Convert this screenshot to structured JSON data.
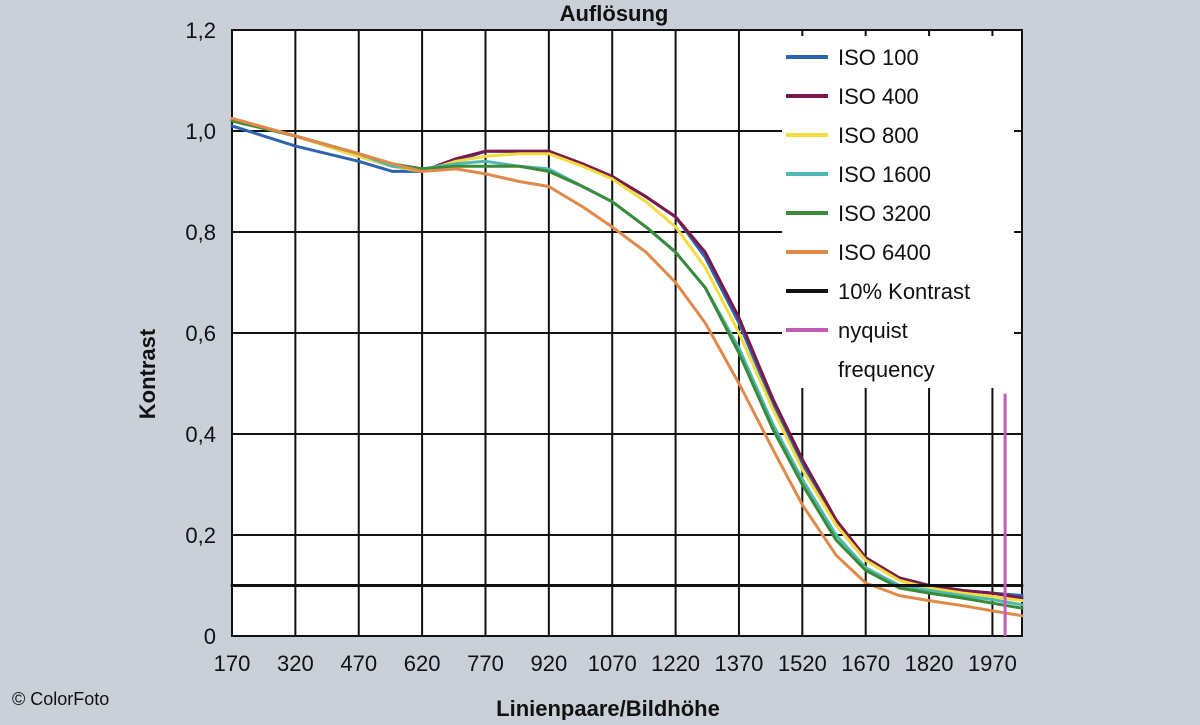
{
  "copyright": "© ColorFoto",
  "chart_data": {
    "type": "line",
    "title": "Auflösung",
    "xlabel": "Linienpaare/Bildhöhe",
    "ylabel": "Kontrast",
    "xlim": [
      170,
      2040
    ],
    "ylim": [
      0,
      1.2
    ],
    "xticks": [
      170,
      320,
      470,
      620,
      770,
      920,
      1070,
      1220,
      1370,
      1520,
      1670,
      1820,
      1970
    ],
    "yticks": [
      0,
      0.2,
      0.4,
      0.6,
      0.8,
      1.0,
      1.2
    ],
    "ytick_labels": [
      "0",
      "0,2",
      "0,4",
      "0,6",
      "0,8",
      "1,0",
      "1,2"
    ],
    "grid": true,
    "legend_position": "top-right",
    "series": [
      {
        "name": "ISO 100",
        "color": "#2e63b0",
        "x": [
          170,
          320,
          470,
          550,
          620,
          700,
          770,
          850,
          920,
          1000,
          1070,
          1150,
          1220,
          1290,
          1370,
          1450,
          1520,
          1600,
          1670,
          1750,
          1820,
          1900,
          1970,
          2040
        ],
        "y": [
          1.01,
          0.97,
          0.94,
          0.92,
          0.92,
          0.94,
          0.96,
          0.96,
          0.96,
          0.93,
          0.91,
          0.87,
          0.83,
          0.75,
          0.62,
          0.46,
          0.34,
          0.22,
          0.15,
          0.115,
          0.1,
          0.09,
          0.085,
          0.08
        ]
      },
      {
        "name": "ISO 400",
        "color": "#7a1a4a",
        "x": [
          170,
          320,
          470,
          550,
          620,
          700,
          770,
          850,
          920,
          1000,
          1070,
          1150,
          1220,
          1290,
          1370,
          1450,
          1520,
          1600,
          1670,
          1750,
          1820,
          1900,
          1970,
          2040
        ],
        "y": [
          1.025,
          0.99,
          0.95,
          0.93,
          0.92,
          0.945,
          0.96,
          0.96,
          0.96,
          0.935,
          0.91,
          0.87,
          0.83,
          0.76,
          0.63,
          0.47,
          0.35,
          0.23,
          0.155,
          0.115,
          0.1,
          0.09,
          0.085,
          0.075
        ]
      },
      {
        "name": "ISO 800",
        "color": "#f2dc40",
        "x": [
          170,
          320,
          470,
          550,
          620,
          700,
          770,
          850,
          920,
          1000,
          1070,
          1150,
          1220,
          1290,
          1370,
          1450,
          1520,
          1600,
          1670,
          1750,
          1820,
          1900,
          1970,
          2040
        ],
        "y": [
          1.025,
          0.99,
          0.95,
          0.93,
          0.92,
          0.94,
          0.95,
          0.955,
          0.955,
          0.93,
          0.905,
          0.86,
          0.81,
          0.73,
          0.6,
          0.45,
          0.33,
          0.22,
          0.15,
          0.11,
          0.095,
          0.085,
          0.078,
          0.07
        ]
      },
      {
        "name": "ISO 1600",
        "color": "#4fb8b0",
        "x": [
          170,
          320,
          470,
          550,
          620,
          700,
          770,
          850,
          920,
          1000,
          1070,
          1150,
          1220,
          1290,
          1370,
          1450,
          1520,
          1600,
          1670,
          1750,
          1820,
          1900,
          1970,
          2040
        ],
        "y": [
          1.02,
          0.99,
          0.955,
          0.93,
          0.925,
          0.935,
          0.94,
          0.93,
          0.925,
          0.89,
          0.86,
          0.81,
          0.76,
          0.69,
          0.57,
          0.42,
          0.31,
          0.2,
          0.135,
          0.1,
          0.09,
          0.08,
          0.072,
          0.062
        ]
      },
      {
        "name": "ISO 3200",
        "color": "#3a8a3a",
        "x": [
          170,
          320,
          470,
          550,
          620,
          700,
          770,
          850,
          920,
          1000,
          1070,
          1150,
          1220,
          1290,
          1370,
          1450,
          1520,
          1600,
          1670,
          1750,
          1820,
          1900,
          1970,
          2040
        ],
        "y": [
          1.02,
          0.99,
          0.955,
          0.935,
          0.925,
          0.93,
          0.93,
          0.93,
          0.92,
          0.89,
          0.86,
          0.81,
          0.76,
          0.69,
          0.56,
          0.41,
          0.3,
          0.19,
          0.13,
          0.095,
          0.085,
          0.075,
          0.065,
          0.055
        ]
      },
      {
        "name": "ISO 6400",
        "color": "#e08a4a",
        "x": [
          170,
          320,
          470,
          550,
          620,
          700,
          770,
          850,
          920,
          1000,
          1070,
          1150,
          1220,
          1290,
          1370,
          1450,
          1520,
          1600,
          1670,
          1750,
          1820,
          1900,
          1970,
          2040
        ],
        "y": [
          1.025,
          0.99,
          0.955,
          0.935,
          0.92,
          0.925,
          0.915,
          0.9,
          0.89,
          0.85,
          0.81,
          0.76,
          0.7,
          0.62,
          0.5,
          0.37,
          0.26,
          0.16,
          0.105,
          0.08,
          0.07,
          0.06,
          0.05,
          0.04
        ]
      },
      {
        "name": "10% Kontrast",
        "color": "#111111",
        "x": [
          170,
          2040
        ],
        "y": [
          0.1,
          0.1
        ]
      }
    ],
    "vlines": [
      {
        "name": "nyquist frequency",
        "name_lines": [
          "nyquist",
          "frequency"
        ],
        "color": "#c35ab8",
        "x": 2000,
        "y_top": 0.48
      }
    ]
  }
}
